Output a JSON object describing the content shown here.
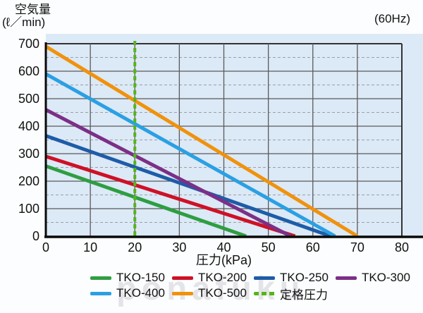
{
  "header": {
    "y_axis_title_line1": "空気量",
    "y_axis_title_line2": "(ℓ／min)",
    "frequency": "(60Hz)"
  },
  "watermark": "ponafuku",
  "colors": {
    "panel_bg": "#dce9f6",
    "grid_major": "#5a5a5a",
    "grid_minor": "#9aa0a6",
    "border": "#333333",
    "axis": "#0a0a0a",
    "text": "#111111",
    "watermark": "#e4e4e8"
  },
  "chart_data": {
    "type": "line",
    "title": "",
    "xlabel": "圧力(kPa)",
    "ylabel": "空気量(ℓ／min)",
    "frequency_note": "(60Hz)",
    "xlim": [
      0,
      80
    ],
    "ylim": [
      0,
      700
    ],
    "xticks": [
      0,
      10,
      20,
      30,
      40,
      50,
      60,
      70,
      80
    ],
    "yticks": [
      0,
      100,
      200,
      300,
      400,
      500,
      600,
      700
    ],
    "y_minor_tick_step": 50,
    "grid": true,
    "legend_position": "bottom",
    "rated_pressure": {
      "label": "定格圧力",
      "x_kpa": 20,
      "color": "#55b518"
    },
    "series": [
      {
        "name": "TKO-150",
        "color": "#2e9e41",
        "points": [
          [
            0,
            255
          ],
          [
            45,
            0
          ]
        ]
      },
      {
        "name": "TKO-200",
        "color": "#ce1126",
        "points": [
          [
            0,
            290
          ],
          [
            56,
            0
          ]
        ]
      },
      {
        "name": "TKO-250",
        "color": "#1d5ca8",
        "points": [
          [
            0,
            365
          ],
          [
            64,
            0
          ]
        ]
      },
      {
        "name": "TKO-300",
        "color": "#7c2f87",
        "points": [
          [
            0,
            460
          ],
          [
            55,
            0
          ]
        ]
      },
      {
        "name": "TKO-400",
        "color": "#2aa0e4",
        "points": [
          [
            0,
            590
          ],
          [
            65,
            0
          ]
        ]
      },
      {
        "name": "TKO-500",
        "color": "#f0920c",
        "points": [
          [
            0,
            690
          ],
          [
            70,
            0
          ]
        ]
      }
    ],
    "legend_rows": [
      [
        "TKO-150",
        "TKO-200",
        "TKO-250",
        "TKO-300"
      ],
      [
        "TKO-400",
        "TKO-500",
        "定格圧力"
      ]
    ]
  }
}
